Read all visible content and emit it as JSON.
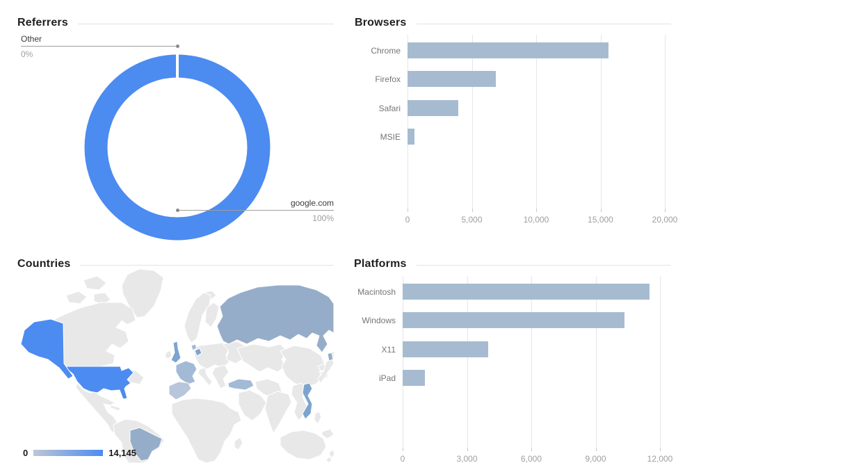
{
  "theme": {
    "accent": "#4c8bf0",
    "bar": "#a6bbd0",
    "grid": "#e6e6e6",
    "tick": "#c9c9c9",
    "axis_text": "#9e9e9e",
    "cat_text": "#757575",
    "title_text": "#1f1f1f",
    "divider": "#e2e2e2",
    "leader": "#9e9e9e",
    "dot": "#8a8a8a",
    "map_default": "#e8e8e8",
    "map_high": "#4c8bf0",
    "map_mid": "#96adc9",
    "map_medium": "#7da4ce",
    "map_light": "#a3bad6",
    "map_lighter": "#b7c6da",
    "legend_low": "#bcc6d6"
  },
  "panels": {
    "referrers": {
      "title": "Referrers"
    },
    "browsers": {
      "title": "Browsers"
    },
    "countries": {
      "title": "Countries"
    },
    "platforms": {
      "title": "Platforms"
    }
  },
  "referrers": {
    "callouts": [
      {
        "label": "Other",
        "value": "0%"
      },
      {
        "label": "google.com",
        "value": "100%"
      }
    ]
  },
  "countries": {
    "legend_min": "0",
    "legend_max": "14,145"
  },
  "chart_data": [
    {
      "id": "referrers",
      "type": "pie",
      "donut": true,
      "title": "Referrers",
      "labels": [
        "google.com",
        "Other"
      ],
      "values": [
        100,
        0
      ],
      "unit": "%",
      "color": "#4c8bf0"
    },
    {
      "id": "browsers",
      "type": "bar",
      "orientation": "horizontal",
      "title": "Browsers",
      "categories": [
        "Chrome",
        "Firefox",
        "Safari",
        "MSIE"
      ],
      "values": [
        15600,
        6850,
        3950,
        560
      ],
      "xlim": [
        0,
        20000
      ],
      "tick_values": [
        0,
        5000,
        10000,
        15000,
        20000
      ],
      "tick_labels": [
        "0",
        "5,000",
        "10,000",
        "15,000",
        "20,000"
      ],
      "grid": true,
      "legend": "none"
    },
    {
      "id": "countries",
      "type": "heatmap",
      "title": "Countries",
      "projection": "world map choropleth",
      "colorbar": {
        "min": 0,
        "max": 14145,
        "min_label": "0",
        "max_label": "14,145"
      },
      "regions": [
        {
          "name": "United States",
          "intensity": "high"
        },
        {
          "name": "Alaska (United States)",
          "intensity": "high"
        },
        {
          "name": "Russia",
          "intensity": "mid"
        },
        {
          "name": "Brazil",
          "intensity": "mid"
        },
        {
          "name": "United Kingdom",
          "intensity": "medium"
        },
        {
          "name": "Netherlands",
          "intensity": "medium"
        },
        {
          "name": "Vietnam",
          "intensity": "medium"
        },
        {
          "name": "France",
          "intensity": "light"
        },
        {
          "name": "Denmark",
          "intensity": "light"
        },
        {
          "name": "Turkey",
          "intensity": "light"
        },
        {
          "name": "Spain",
          "intensity": "lighter"
        }
      ]
    },
    {
      "id": "platforms",
      "type": "bar",
      "orientation": "horizontal",
      "title": "Platforms",
      "categories": [
        "Macintosh",
        "Windows",
        "X11",
        "iPad"
      ],
      "values": [
        11500,
        10350,
        4000,
        1050
      ],
      "xlim": [
        0,
        12000
      ],
      "tick_values": [
        0,
        3000,
        6000,
        9000,
        12000
      ],
      "tick_labels": [
        "0",
        "3,000",
        "6,000",
        "9,000",
        "12,000"
      ],
      "grid": true,
      "legend": "none"
    }
  ]
}
